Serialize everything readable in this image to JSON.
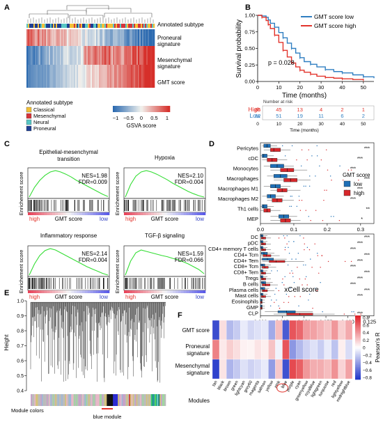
{
  "panels": {
    "A": {
      "letter": "A",
      "row_labels": [
        "Annotated subtype",
        "Proneural signature",
        "Mesenchymal signature",
        "GMT score"
      ],
      "row_label_lines": [
        [
          "Annotated subtype"
        ],
        [
          "Proneural",
          "signature"
        ],
        [
          "Mesenchymal",
          "signature"
        ],
        [
          "GMT score"
        ]
      ],
      "legend_title": "Annotated subtype",
      "subtypes": [
        {
          "name": "Classical",
          "color": "#f2c037"
        },
        {
          "name": "Mesenchymal",
          "color": "#d6343a"
        },
        {
          "name": "Neural",
          "color": "#58c6c4"
        },
        {
          "name": "Proneural",
          "color": "#1f3f93"
        }
      ],
      "colorbar": {
        "ticks": [
          "−1",
          "−0.5",
          "0",
          "0.5",
          "1"
        ],
        "label": "GSVA score",
        "low": "#2c6ab0",
        "mid": "#f2f2ee",
        "high": "#d62f2a"
      }
    },
    "B": {
      "letter": "B",
      "chart_data": {
        "type": "line",
        "title": "",
        "xlabel": "Time (months)",
        "ylabel": "Survival probability",
        "xlim": [
          0,
          55
        ],
        "ylim": [
          0,
          1
        ],
        "xticks": [
          "0",
          "10",
          "20",
          "30",
          "40",
          "50"
        ],
        "yticks": [
          "0.00",
          "0.25",
          "0.50",
          "0.75",
          "1.00"
        ],
        "pvalue": "p = 0.028",
        "legend_position": "top-right",
        "series": [
          {
            "name": "GMT score low",
            "color": "#2f7ec1",
            "points": [
              [
                0,
                1
              ],
              [
                2,
                0.99
              ],
              [
                4,
                0.97
              ],
              [
                5,
                0.93
              ],
              [
                6,
                0.88
              ],
              [
                8,
                0.82
              ],
              [
                10,
                0.74
              ],
              [
                12,
                0.66
              ],
              [
                14,
                0.58
              ],
              [
                16,
                0.5
              ],
              [
                18,
                0.43
              ],
              [
                20,
                0.36
              ],
              [
                22,
                0.3
              ],
              [
                25,
                0.26
              ],
              [
                28,
                0.22
              ],
              [
                32,
                0.18
              ],
              [
                36,
                0.15
              ],
              [
                40,
                0.13
              ],
              [
                45,
                0.1
              ],
              [
                50,
                0.07
              ],
              [
                55,
                0.05
              ]
            ]
          },
          {
            "name": "GMT score high",
            "color": "#e2332b",
            "points": [
              [
                0,
                1
              ],
              [
                2,
                0.97
              ],
              [
                4,
                0.92
              ],
              [
                5,
                0.86
              ],
              [
                6,
                0.8
              ],
              [
                8,
                0.7
              ],
              [
                10,
                0.59
              ],
              [
                12,
                0.47
              ],
              [
                14,
                0.37
              ],
              [
                16,
                0.28
              ],
              [
                18,
                0.22
              ],
              [
                20,
                0.17
              ],
              [
                22,
                0.14
              ],
              [
                25,
                0.11
              ],
              [
                28,
                0.08
              ],
              [
                32,
                0.06
              ],
              [
                36,
                0.05
              ],
              [
                40,
                0.04
              ],
              [
                45,
                0.03
              ],
              [
                50,
                0.02
              ]
            ]
          }
        ]
      },
      "risk_table": {
        "title": "Number at risk",
        "x": [
          "0",
          "10",
          "20",
          "30",
          "40",
          "50"
        ],
        "rows": [
          {
            "name": "High",
            "color": "#e2332b",
            "values": [
              "86",
              "45",
              "13",
              "4",
              "2",
              "1"
            ]
          },
          {
            "name": "Low",
            "color": "#2f7ec1",
            "values": [
              "82",
              "51",
              "19",
              "11",
              "6",
              "2"
            ]
          }
        ]
      }
    },
    "C": {
      "letter": "C",
      "xlabel": "GMT score",
      "high_label": "high",
      "low_label": "low",
      "ylabel": "Enrichement score",
      "plots": [
        {
          "title_lines": [
            "Epithelial-mesenchymal",
            "transition"
          ],
          "nes": "NES=1.98",
          "fdr": "FDR=0.009",
          "curve": [
            0,
            0.35,
            0.6,
            0.78,
            0.9,
            0.95,
            0.9,
            0.82,
            0.72,
            0.6,
            0.5,
            0.4,
            0.3,
            0.2,
            0.1,
            0.02
          ]
        },
        {
          "title_lines": [
            "Hypoxia"
          ],
          "nes": "NES=2.10",
          "fdr": "FDR=0.004",
          "curve": [
            0,
            0.45,
            0.75,
            0.9,
            0.95,
            0.9,
            0.82,
            0.72,
            0.62,
            0.5,
            0.4,
            0.3,
            0.2,
            0.12,
            0.05,
            0
          ]
        },
        {
          "title_lines": [
            "Inflammatory response"
          ],
          "nes": "NES=2.14",
          "fdr": "FDR=0.004",
          "curve": [
            0,
            0.4,
            0.7,
            0.88,
            0.95,
            0.9,
            0.8,
            0.7,
            0.6,
            0.5,
            0.4,
            0.3,
            0.22,
            0.14,
            0.06,
            0
          ]
        },
        {
          "title_lines": [
            "TGF-β signaling"
          ],
          "nes": "NES=1.59",
          "fdr": "FDR=0.066",
          "curve": [
            0,
            0.5,
            0.8,
            0.9,
            0.85,
            0.8,
            0.75,
            0.7,
            0.66,
            0.6,
            0.55,
            0.48,
            0.4,
            0.3,
            0.2,
            0.05
          ]
        }
      ]
    },
    "D": {
      "letter": "D",
      "xlabel": "xCell score",
      "legend_title": "GMT score",
      "groups": [
        {
          "name": "low",
          "color": "#1f6fb6"
        },
        {
          "name": "high",
          "color": "#d7272b"
        }
      ],
      "top": {
        "xticks": [
          "0.0",
          "0.1",
          "0.2",
          "0.3"
        ],
        "xlim": [
          0,
          0.34
        ],
        "cells": [
          {
            "name": "Pericytes",
            "sig": "***",
            "low": [
              0.005,
              0.01,
              0.02,
              0.03,
              0.05
            ],
            "high": [
              0.01,
              0.03,
              0.04,
              0.06,
              0.09
            ]
          },
          {
            "name": "cDC",
            "sig": "***",
            "low": [
              0.0,
              0.005,
              0.01,
              0.02,
              0.04
            ],
            "high": [
              0.005,
              0.02,
              0.035,
              0.05,
              0.08
            ]
          },
          {
            "name": "Monocytes",
            "sig": "***",
            "low": [
              0.01,
              0.03,
              0.05,
              0.07,
              0.1
            ],
            "high": [
              0.03,
              0.06,
              0.08,
              0.1,
              0.14
            ]
          },
          {
            "name": "Macrophages",
            "sig": "***",
            "low": [
              0.02,
              0.04,
              0.06,
              0.08,
              0.11
            ],
            "high": [
              0.04,
              0.07,
              0.09,
              0.11,
              0.15
            ]
          },
          {
            "name": "Macrophages M1",
            "sig": "***",
            "low": [
              0.01,
              0.03,
              0.045,
              0.06,
              0.09
            ],
            "high": [
              0.03,
              0.05,
              0.065,
              0.08,
              0.12
            ]
          },
          {
            "name": "Macrophages M2",
            "sig": "***",
            "low": [
              0.005,
              0.02,
              0.03,
              0.045,
              0.07
            ],
            "high": [
              0.02,
              0.035,
              0.05,
              0.065,
              0.1
            ]
          },
          {
            "name": "Th1 cells",
            "sig": "**",
            "low": [
              0.0,
              0.005,
              0.01,
              0.02,
              0.04
            ],
            "high": [
              0.0,
              0.01,
              0.02,
              0.03,
              0.06
            ]
          },
          {
            "name": "MEP",
            "sig": "*",
            "low": [
              0.03,
              0.055,
              0.07,
              0.085,
              0.11
            ],
            "high": [
              0.03,
              0.06,
              0.075,
              0.09,
              0.12
            ]
          }
        ]
      },
      "bottom": {
        "xticks": [
          "0.000",
          "0.025",
          "0.050",
          "0.075",
          "0.100",
          "0.125"
        ],
        "xlim": [
          0,
          0.13
        ],
        "cells": [
          {
            "name": "DC",
            "sig": "***",
            "low": [
              0,
              0,
              0.001,
              0.003,
              0.008
            ],
            "high": [
              0,
              0.001,
              0.003,
              0.006,
              0.012
            ]
          },
          {
            "name": "pDC",
            "sig": "***",
            "low": [
              0,
              0,
              0.001,
              0.003,
              0.008
            ],
            "high": [
              0,
              0.001,
              0.003,
              0.006,
              0.012
            ]
          },
          {
            "name": "CD4+ memory T cells",
            "sig": "***",
            "low": [
              0,
              0,
              0.001,
              0.003,
              0.008
            ],
            "high": [
              0,
              0.001,
              0.003,
              0.006,
              0.012
            ]
          },
          {
            "name": "CD4+ Tcm",
            "sig": "***",
            "low": [
              0,
              0.001,
              0.004,
              0.008,
              0.016
            ],
            "high": [
              0,
              0.003,
              0.007,
              0.012,
              0.022
            ]
          },
          {
            "name": "CD4+ Tem",
            "sig": "***",
            "low": [
              0,
              0.002,
              0.008,
              0.015,
              0.03
            ],
            "high": [
              0.002,
              0.01,
              0.018,
              0.028,
              0.05
            ]
          },
          {
            "name": "CD8+ Tcm",
            "sig": "***",
            "low": [
              0,
              0,
              0.002,
              0.005,
              0.012
            ],
            "high": [
              0,
              0.002,
              0.005,
              0.009,
              0.018
            ]
          },
          {
            "name": "CD8+ Tem",
            "sig": "***",
            "low": [
              0,
              0,
              0.001,
              0.003,
              0.008
            ],
            "high": [
              0,
              0.001,
              0.003,
              0.006,
              0.012
            ]
          },
          {
            "name": "Tregs",
            "sig": "***",
            "low": [
              0,
              0,
              0.001,
              0.003,
              0.008
            ],
            "high": [
              0,
              0.001,
              0.003,
              0.006,
              0.012
            ]
          },
          {
            "name": "B cells",
            "sig": "***",
            "low": [
              0,
              0.001,
              0.003,
              0.006,
              0.014
            ],
            "high": [
              0,
              0.002,
              0.006,
              0.011,
              0.02
            ]
          },
          {
            "name": "Plasma cells",
            "sig": "***",
            "low": [
              0,
              0,
              0.002,
              0.005,
              0.01
            ],
            "high": [
              0,
              0.002,
              0.004,
              0.008,
              0.016
            ]
          },
          {
            "name": "Mast cells",
            "sig": "***",
            "low": [
              0,
              0,
              0.001,
              0.003,
              0.008
            ],
            "high": [
              0,
              0.001,
              0.003,
              0.006,
              0.012
            ]
          },
          {
            "name": "Eosinophils",
            "sig": "",
            "low": [
              0,
              0,
              0.001,
              0.002,
              0.005
            ],
            "high": [
              0,
              0,
              0.001,
              0.002,
              0.005
            ]
          },
          {
            "name": "GMP",
            "sig": "",
            "low": [
              0,
              0,
              0.001,
              0.002,
              0.005
            ],
            "high": [
              0,
              0,
              0.001,
              0.002,
              0.005
            ]
          },
          {
            "name": "CLP",
            "sig": "***",
            "low": [
              0.005,
              0.02,
              0.03,
              0.04,
              0.06
            ],
            "high": [
              0.015,
              0.03,
              0.045,
              0.06,
              0.085
            ]
          }
        ]
      }
    },
    "E": {
      "letter": "E",
      "ylabel": "Height",
      "yticks": [
        "0.4",
        "0.5",
        "0.6",
        "0.7",
        "0.8",
        "0.9",
        "1.0"
      ],
      "ylim": [
        0.4,
        1.0
      ],
      "module_label": "Module colors",
      "highlight": "blue module"
    },
    "F": {
      "letter": "F",
      "rows": [
        "GMT score",
        "Proneural signature",
        "Mesenchymal signature"
      ],
      "row_label_lines": [
        [
          "GMT score"
        ],
        [
          "Proneural",
          "signature"
        ],
        [
          "Mesenchymal",
          "signature"
        ]
      ],
      "modules_label": "Modules",
      "modules": [
        "tan",
        "black",
        "brown",
        "green",
        "lightcyan",
        "grey60",
        "magenta",
        "salmon",
        "yellow",
        "pink",
        "blue",
        "purple",
        "cyan",
        "greenyellow",
        "royalblue",
        "lightgreen",
        "turquoise",
        "red",
        "lightyellow",
        "midnightblue"
      ],
      "highlight_module": "blue",
      "values": [
        [
          -0.72,
          0.12,
          -0.28,
          -0.21,
          -0.08,
          -0.16,
          -0.12,
          -0.09,
          -0.34,
          0.24,
          -0.66,
          0.62,
          0.55,
          0.36,
          0.34,
          0.28,
          0.22,
          0.38,
          0.18,
          0.31
        ],
        [
          0.46,
          0.08,
          0.18,
          0.12,
          0.05,
          0.04,
          0.1,
          0.06,
          0.22,
          -0.05,
          0.62,
          -0.42,
          -0.28,
          -0.18,
          -0.12,
          -0.2,
          -0.08,
          -0.24,
          0.06,
          -0.14
        ],
        [
          -0.76,
          0.1,
          -0.3,
          -0.22,
          -0.12,
          -0.18,
          -0.14,
          -0.08,
          -0.4,
          0.2,
          -0.7,
          0.66,
          0.58,
          0.38,
          0.3,
          0.3,
          0.24,
          0.4,
          0.16,
          0.34
        ]
      ],
      "colorbar": {
        "ticks": [
          "0.8",
          "0.6",
          "0.4",
          "0.2",
          "0",
          "−0.2",
          "−0.4",
          "−0.6",
          "−0.8"
        ],
        "label": "Pearson's R",
        "low": "#2438c9",
        "mid": "#ffffff",
        "high": "#e0242b"
      }
    }
  }
}
